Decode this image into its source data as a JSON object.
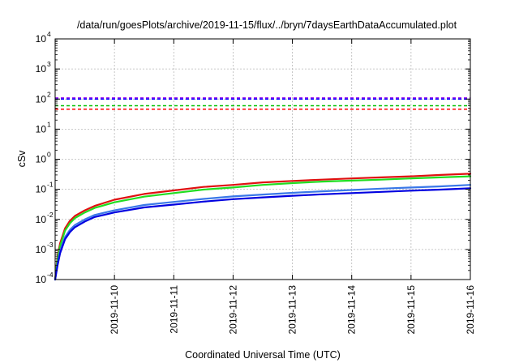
{
  "chart_data": {
    "type": "line",
    "title": "/data/run/goesPlots/archive/2019-11-15/flux/../bryn/7daysEarthDataAccumulated.plot",
    "xlabel": "Coordinated Universal Time (UTC)",
    "ylabel": "cSv",
    "yscale": "log",
    "ylim": [
      0.0001,
      10000
    ],
    "xlim": [
      "2019-11-09",
      "2019-11-16"
    ],
    "grid": true,
    "legend": "none",
    "x_ticks": [
      "2019-11-10",
      "2019-11-11",
      "2019-11-12",
      "2019-11-13",
      "2019-11-14",
      "2019-11-15",
      "2019-11-16"
    ],
    "y_ticks": [
      {
        "base": "10",
        "exp": "-4"
      },
      {
        "base": "10",
        "exp": "-3"
      },
      {
        "base": "10",
        "exp": "-2"
      },
      {
        "base": "10",
        "exp": "-1"
      },
      {
        "base": "10",
        "exp": "0"
      },
      {
        "base": "10",
        "exp": "1"
      },
      {
        "base": "10",
        "exp": "2"
      },
      {
        "base": "10",
        "exp": "3"
      },
      {
        "base": "10",
        "exp": "4"
      }
    ],
    "thresholds": [
      {
        "value": 110,
        "color": "#a020f0"
      },
      {
        "value": 100,
        "color": "#0000ff"
      },
      {
        "value": 60,
        "color": "#00c000"
      },
      {
        "value": 46,
        "color": "#ff0000"
      }
    ],
    "series": [
      {
        "color": "#e01010",
        "x": [
          "2019-11-09T00:00",
          "2019-11-09T01:00",
          "2019-11-09T02:00",
          "2019-11-09T04:00",
          "2019-11-09T06:00",
          "2019-11-09T08:00",
          "2019-11-09T12:00",
          "2019-11-09T16:00",
          "2019-11-10T00:00",
          "2019-11-10T12:00",
          "2019-11-11T00:00",
          "2019-11-11T12:00",
          "2019-11-12T00:00",
          "2019-11-12T12:00",
          "2019-11-13T00:00",
          "2019-11-13T12:00",
          "2019-11-14T00:00",
          "2019-11-14T12:00",
          "2019-11-15T00:00",
          "2019-11-15T12:00",
          "2019-11-16T00:00"
        ],
        "values": [
          0.0001,
          0.0006,
          0.0016,
          0.005,
          0.009,
          0.013,
          0.02,
          0.028,
          0.045,
          0.07,
          0.092,
          0.12,
          0.14,
          0.17,
          0.19,
          0.21,
          0.23,
          0.25,
          0.27,
          0.3,
          0.33
        ]
      },
      {
        "color": "#20dd20",
        "x": [
          "2019-11-09T00:00",
          "2019-11-09T01:00",
          "2019-11-09T02:00",
          "2019-11-09T04:00",
          "2019-11-09T06:00",
          "2019-11-09T08:00",
          "2019-11-09T12:00",
          "2019-11-09T16:00",
          "2019-11-10T00:00",
          "2019-11-10T12:00",
          "2019-11-11T00:00",
          "2019-11-11T12:00",
          "2019-11-12T00:00",
          "2019-11-12T12:00",
          "2019-11-13T00:00",
          "2019-11-13T12:00",
          "2019-11-14T00:00",
          "2019-11-14T12:00",
          "2019-11-15T00:00",
          "2019-11-15T12:00",
          "2019-11-16T00:00"
        ],
        "values": [
          0.0001,
          0.0005,
          0.0013,
          0.0042,
          0.0075,
          0.011,
          0.017,
          0.024,
          0.037,
          0.057,
          0.075,
          0.098,
          0.115,
          0.14,
          0.16,
          0.18,
          0.195,
          0.21,
          0.23,
          0.25,
          0.27
        ]
      },
      {
        "color": "#3a78e8",
        "x": [
          "2019-11-09T00:00",
          "2019-11-09T01:00",
          "2019-11-09T02:00",
          "2019-11-09T04:00",
          "2019-11-09T06:00",
          "2019-11-09T08:00",
          "2019-11-09T12:00",
          "2019-11-09T16:00",
          "2019-11-10T00:00",
          "2019-11-10T12:00",
          "2019-11-11T00:00",
          "2019-11-11T12:00",
          "2019-11-12T00:00",
          "2019-11-12T12:00",
          "2019-11-13T00:00",
          "2019-11-13T12:00",
          "2019-11-14T00:00",
          "2019-11-14T12:00",
          "2019-11-15T00:00",
          "2019-11-15T12:00",
          "2019-11-16T00:00"
        ],
        "values": [
          0.0001,
          0.00035,
          0.0009,
          0.0026,
          0.0045,
          0.0065,
          0.01,
          0.014,
          0.02,
          0.03,
          0.038,
          0.048,
          0.058,
          0.067,
          0.076,
          0.086,
          0.095,
          0.105,
          0.115,
          0.125,
          0.14
        ]
      },
      {
        "color": "#0000e0",
        "x": [
          "2019-11-09T00:00",
          "2019-11-09T01:00",
          "2019-11-09T02:00",
          "2019-11-09T04:00",
          "2019-11-09T06:00",
          "2019-11-09T08:00",
          "2019-11-09T12:00",
          "2019-11-09T16:00",
          "2019-11-10T00:00",
          "2019-11-10T12:00",
          "2019-11-11T00:00",
          "2019-11-11T12:00",
          "2019-11-12T00:00",
          "2019-11-12T12:00",
          "2019-11-13T00:00",
          "2019-11-13T12:00",
          "2019-11-14T00:00",
          "2019-11-14T12:00",
          "2019-11-15T00:00",
          "2019-11-15T12:00",
          "2019-11-16T00:00"
        ],
        "values": [
          0.0001,
          0.0003,
          0.00075,
          0.0022,
          0.0038,
          0.0055,
          0.0085,
          0.012,
          0.017,
          0.025,
          0.031,
          0.039,
          0.047,
          0.054,
          0.061,
          0.068,
          0.075,
          0.082,
          0.09,
          0.098,
          0.108
        ]
      }
    ]
  }
}
